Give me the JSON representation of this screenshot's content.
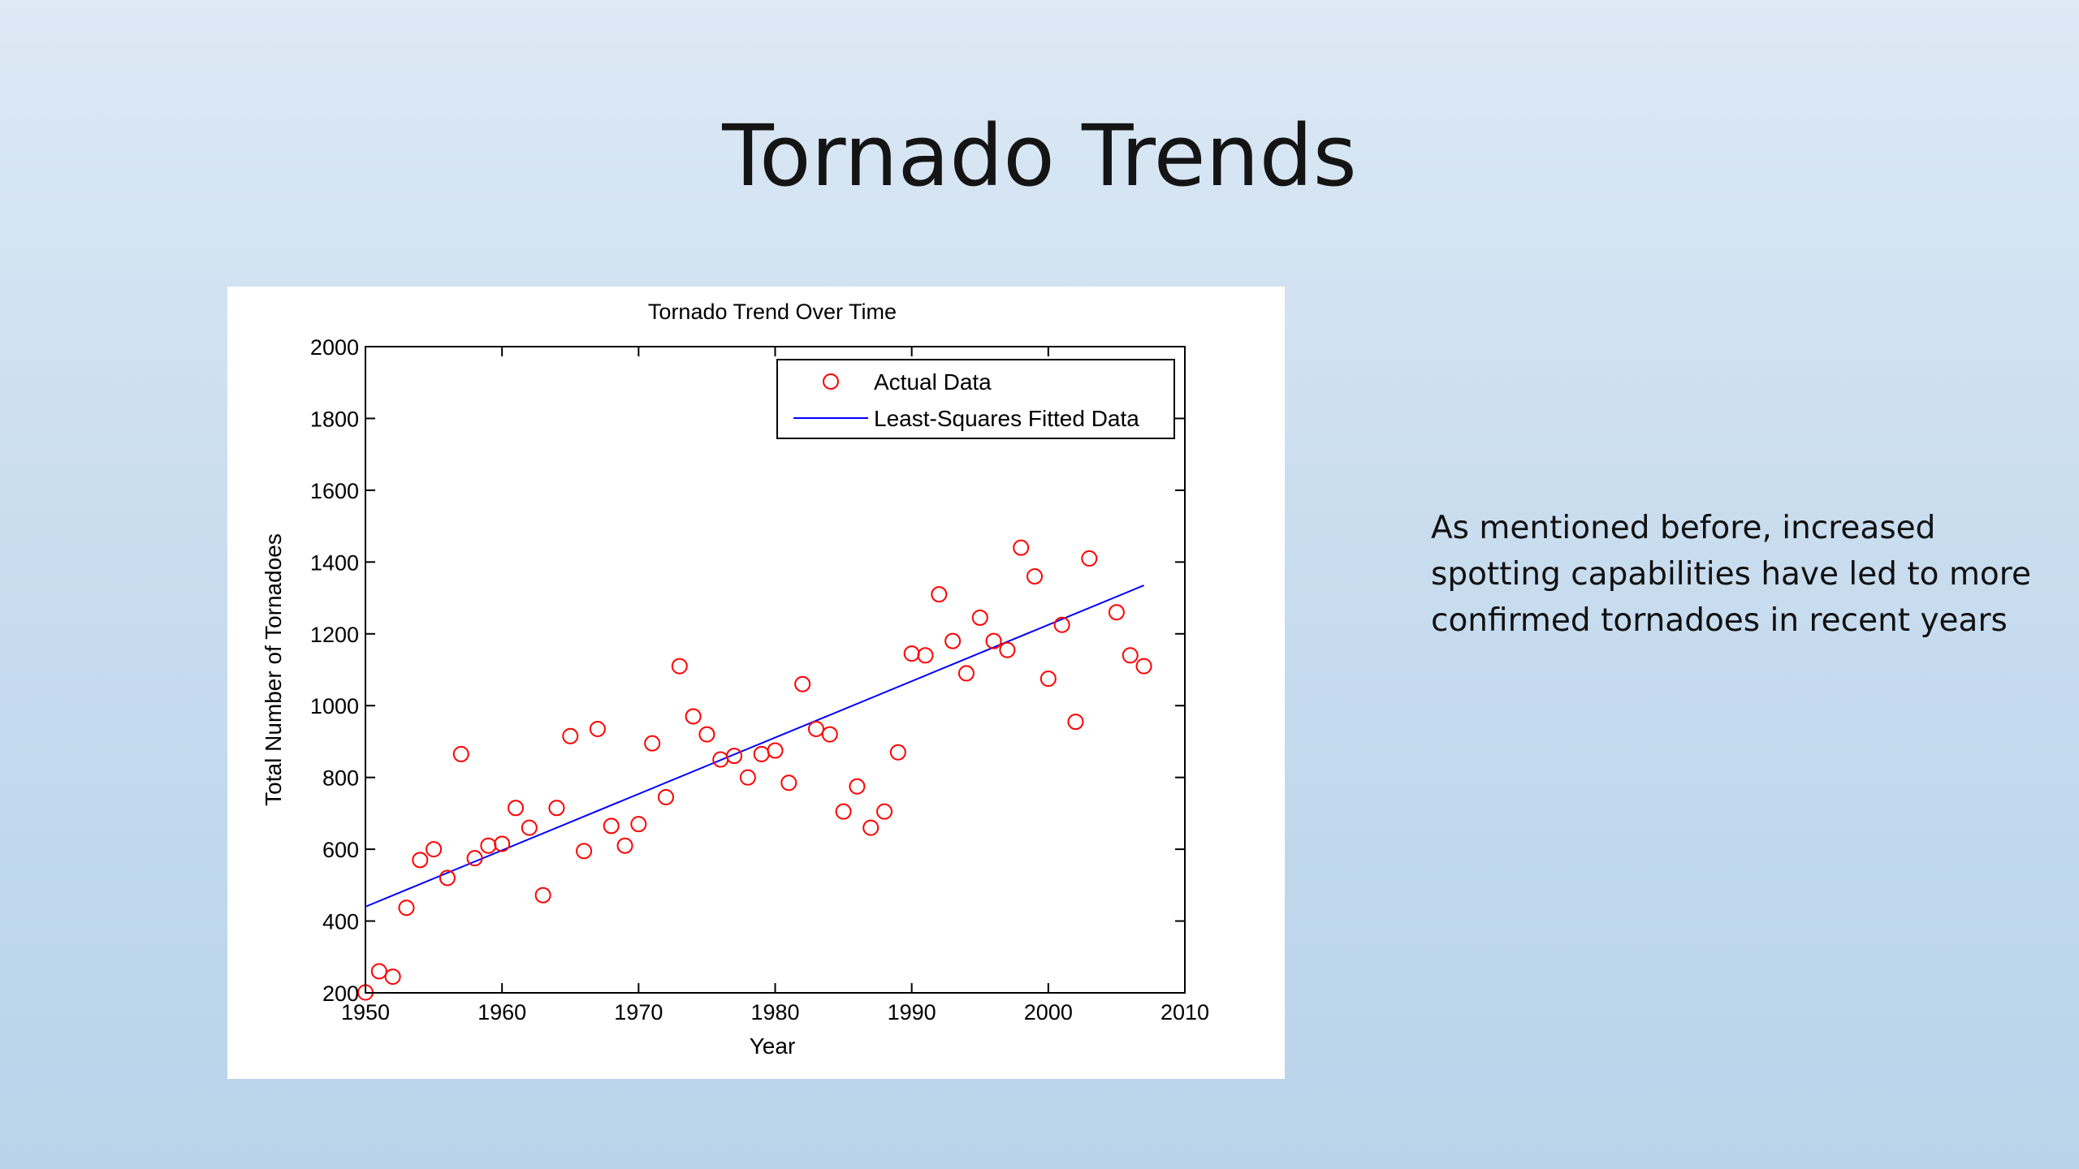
{
  "slide": {
    "title": "Tornado Trends",
    "note": "As mentioned before, increased spotting capabilities have led to more confirmed tornadoes in recent years"
  },
  "chart_data": {
    "type": "scatter",
    "title": "Tornado Trend Over Time",
    "xlabel": "Year",
    "ylabel": "Total Number of Tornadoes",
    "xlim": [
      1950,
      2010
    ],
    "ylim": [
      200,
      2000
    ],
    "xticks": [
      1950,
      1960,
      1970,
      1980,
      1990,
      2000,
      2010
    ],
    "yticks": [
      200,
      400,
      600,
      800,
      1000,
      1200,
      1400,
      1600,
      1800,
      2000
    ],
    "grid": false,
    "legend_position": "top-right",
    "series": [
      {
        "name": "Actual Data",
        "kind": "markers",
        "marker": "circle",
        "color": "#ff0000",
        "x": [
          1950,
          1951,
          1952,
          1953,
          1954,
          1955,
          1956,
          1957,
          1958,
          1959,
          1960,
          1961,
          1962,
          1963,
          1964,
          1965,
          1966,
          1967,
          1968,
          1969,
          1970,
          1971,
          1972,
          1973,
          1974,
          1975,
          1976,
          1977,
          1978,
          1979,
          1980,
          1981,
          1982,
          1983,
          1984,
          1985,
          1986,
          1987,
          1988,
          1989,
          1990,
          1991,
          1992,
          1993,
          1994,
          1995,
          1996,
          1997,
          1998,
          1999,
          2000,
          2001,
          2002,
          2003,
          2005,
          2006,
          2007
        ],
        "y": [
          201,
          260,
          245,
          437,
          570,
          600,
          520,
          865,
          575,
          610,
          615,
          715,
          660,
          472,
          715,
          915,
          595,
          935,
          665,
          610,
          670,
          895,
          745,
          1110,
          970,
          920,
          850,
          860,
          800,
          865,
          875,
          785,
          1060,
          935,
          920,
          705,
          775,
          660,
          705,
          870,
          1145,
          1140,
          1310,
          1180,
          1090,
          1245,
          1180,
          1155,
          1440,
          1360,
          1075,
          1225,
          955,
          1410,
          1260,
          1140,
          1110
        ]
      },
      {
        "name": "Least-Squares Fitted Data",
        "kind": "line",
        "color": "#0000ff",
        "x": [
          1950,
          2007
        ],
        "y": [
          440,
          1335
        ]
      }
    ]
  }
}
